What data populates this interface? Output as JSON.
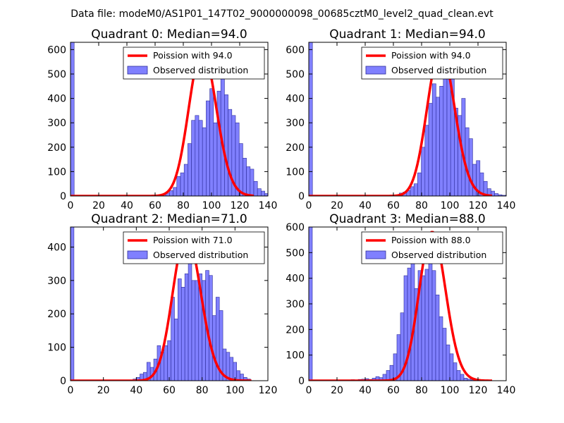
{
  "figure": {
    "suptitle": "Data file: modeM0/AS1P01_147T02_9000000098_00685cztM0_level2_quad_clean.evt"
  },
  "colors": {
    "bar_fill": "#8080ff",
    "bar_edge": "#2c2c9a",
    "curve": "#ff0000"
  },
  "chart_data": [
    {
      "type": "bar",
      "title": "Quadrant 0: Median=94.0",
      "median": 94.0,
      "xlim": [
        0,
        140
      ],
      "ylim": [
        0,
        630
      ],
      "xticks": [
        0,
        20,
        40,
        60,
        80,
        100,
        120,
        140
      ],
      "yticks": [
        0,
        100,
        200,
        300,
        400,
        500,
        600
      ],
      "bin_width": 2.6,
      "zero_bin": {
        "x": 0,
        "value": 630
      },
      "bins": {
        "start": 65,
        "values": [
          8,
          12,
          22,
          35,
          80,
          95,
          130,
          215,
          310,
          330,
          310,
          280,
          390,
          440,
          300,
          430,
          560,
          415,
          355,
          330,
          300,
          215,
          155,
          120,
          110,
          60,
          30,
          20,
          10,
          5
        ]
      },
      "series": [
        {
          "name": "Poission with 94.0",
          "kind": "line",
          "mean": 94.0,
          "peak": 600
        },
        {
          "name": "Observed distribution",
          "kind": "bar"
        }
      ],
      "legend": [
        "Poission with 94.0",
        "Observed distribution"
      ],
      "legend_loc": "upper-right"
    },
    {
      "type": "bar",
      "title": "Quadrant 1: Median=94.0",
      "median": 94.0,
      "xlim": [
        0,
        140
      ],
      "ylim": [
        0,
        630
      ],
      "xticks": [
        0,
        20,
        40,
        60,
        80,
        100,
        120,
        140
      ],
      "yticks": [
        0,
        100,
        200,
        300,
        400,
        500,
        600
      ],
      "bin_width": 2.6,
      "zero_bin": {
        "x": 0,
        "value": 630
      },
      "bins": {
        "start": 59,
        "values": [
          3,
          5,
          12,
          16,
          22,
          38,
          50,
          95,
          200,
          290,
          380,
          460,
          405,
          450,
          530,
          500,
          510,
          360,
          330,
          400,
          280,
          235,
          130,
          145,
          95,
          60,
          30,
          20,
          10,
          5,
          3
        ]
      },
      "series": [
        {
          "name": "Poission with 94.0",
          "kind": "line",
          "mean": 94.0,
          "peak": 600
        },
        {
          "name": "Observed distribution",
          "kind": "bar"
        }
      ],
      "legend": [
        "Poission with 94.0",
        "Observed distribution"
      ],
      "legend_loc": "upper-right"
    },
    {
      "type": "bar",
      "title": "Quadrant 2: Median=71.0",
      "median": 71.0,
      "xlim": [
        0,
        120
      ],
      "ylim": [
        0,
        460
      ],
      "xticks": [
        0,
        20,
        40,
        60,
        80,
        100,
        120
      ],
      "yticks": [
        0,
        100,
        200,
        300,
        400
      ],
      "bin_width": 2.1,
      "zero_bin": {
        "x": 0,
        "value": 460
      },
      "bins": {
        "start": 38,
        "values": [
          5,
          10,
          20,
          25,
          55,
          40,
          65,
          105,
          85,
          105,
          120,
          250,
          185,
          305,
          280,
          320,
          360,
          300,
          300,
          320,
          300,
          330,
          315,
          195,
          250,
          210,
          95,
          85,
          70,
          55,
          30,
          20,
          10,
          5
        ]
      },
      "series": [
        {
          "name": "Poission with 71.0",
          "kind": "line",
          "mean": 71.0,
          "peak": 440
        },
        {
          "name": "Observed distribution",
          "kind": "bar"
        }
      ],
      "legend": [
        "Poission with 71.0",
        "Observed distribution"
      ],
      "legend_loc": "upper-right"
    },
    {
      "type": "bar",
      "title": "Quadrant 3: Median=88.0",
      "median": 88.0,
      "xlim": [
        0,
        140
      ],
      "ylim": [
        0,
        600
      ],
      "xticks": [
        0,
        20,
        40,
        60,
        80,
        100,
        120,
        140
      ],
      "yticks": [
        0,
        100,
        200,
        300,
        400,
        500,
        600
      ],
      "bin_width": 2.5,
      "zero_bin": {
        "x": 0,
        "value": 600
      },
      "bins": {
        "start": 30,
        "values": [
          4,
          3,
          5,
          6,
          8,
          5,
          10,
          16,
          12,
          25,
          40,
          60,
          105,
          180,
          265,
          410,
          440,
          480,
          360,
          430,
          410,
          435,
          555,
          430,
          335,
          250,
          205,
          140,
          105,
          70,
          40,
          25,
          10,
          6,
          3
        ]
      },
      "series": [
        {
          "name": "Poission with 88.0",
          "kind": "line",
          "mean": 88.0,
          "peak": 580
        },
        {
          "name": "Observed distribution",
          "kind": "bar"
        }
      ],
      "legend": [
        "Poission with 88.0",
        "Observed distribution"
      ],
      "legend_loc": "upper-right"
    }
  ]
}
